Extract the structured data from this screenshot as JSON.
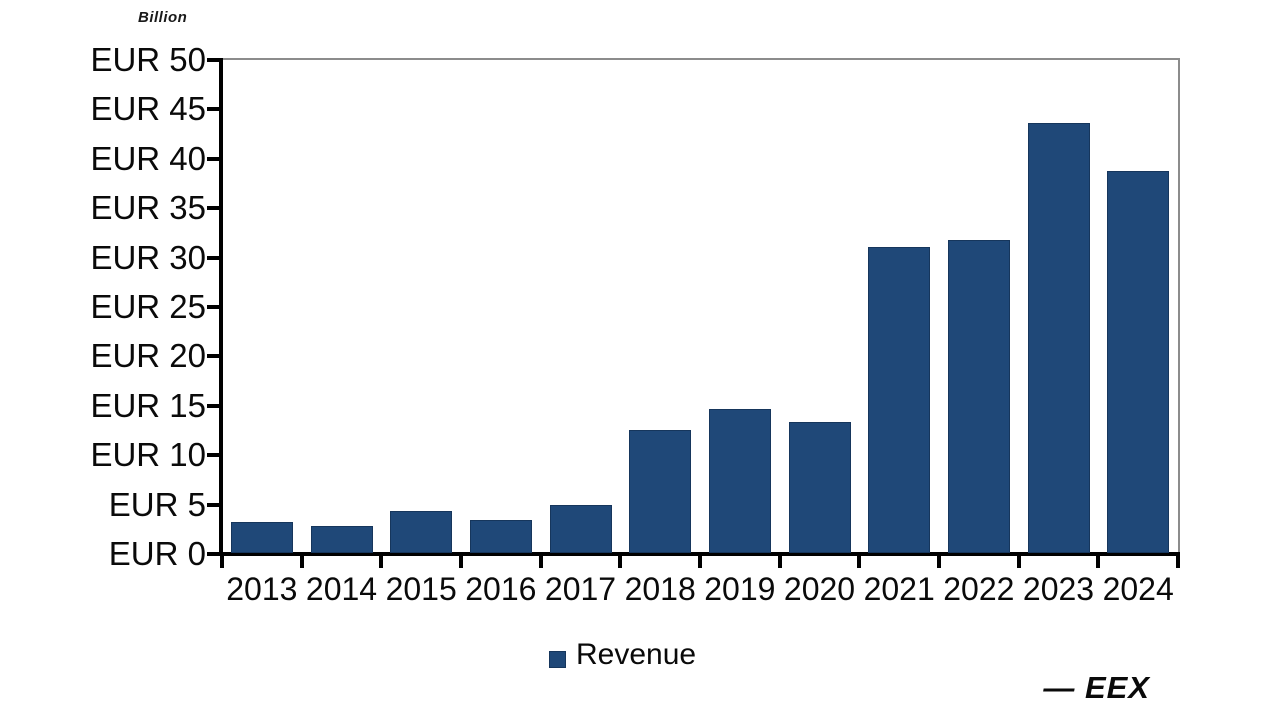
{
  "chart_data": {
    "type": "bar",
    "title": "",
    "unit_label": "Billion",
    "categories": [
      "2013",
      "2014",
      "2015",
      "2016",
      "2017",
      "2018",
      "2019",
      "2020",
      "2021",
      "2022",
      "2023",
      "2024"
    ],
    "series": [
      {
        "name": "Revenue",
        "values": [
          3.1,
          2.7,
          4.3,
          3.3,
          4.9,
          12.5,
          14.6,
          13.3,
          31.0,
          31.7,
          43.5,
          38.7
        ]
      }
    ],
    "xlabel": "",
    "ylabel": "EUR Billion",
    "ylim": [
      0,
      50
    ],
    "ytick_step": 5,
    "ytick_labels": [
      "EUR 0",
      "EUR 5",
      "EUR 10",
      "EUR 15",
      "EUR 20",
      "EUR 25",
      "EUR 30",
      "EUR 35",
      "EUR 40",
      "EUR 45",
      "EUR 50"
    ],
    "grid": false,
    "legend_position": "bottom",
    "bar_color": "#1f4878",
    "bar_border_color": "#16365c",
    "axis_color": "#000000",
    "frame_color": "#8c8c8c"
  },
  "legend": {
    "items": [
      {
        "label": "Revenue",
        "color": "#1f4878"
      }
    ]
  },
  "branding": {
    "logo_text": "— EEX"
  }
}
